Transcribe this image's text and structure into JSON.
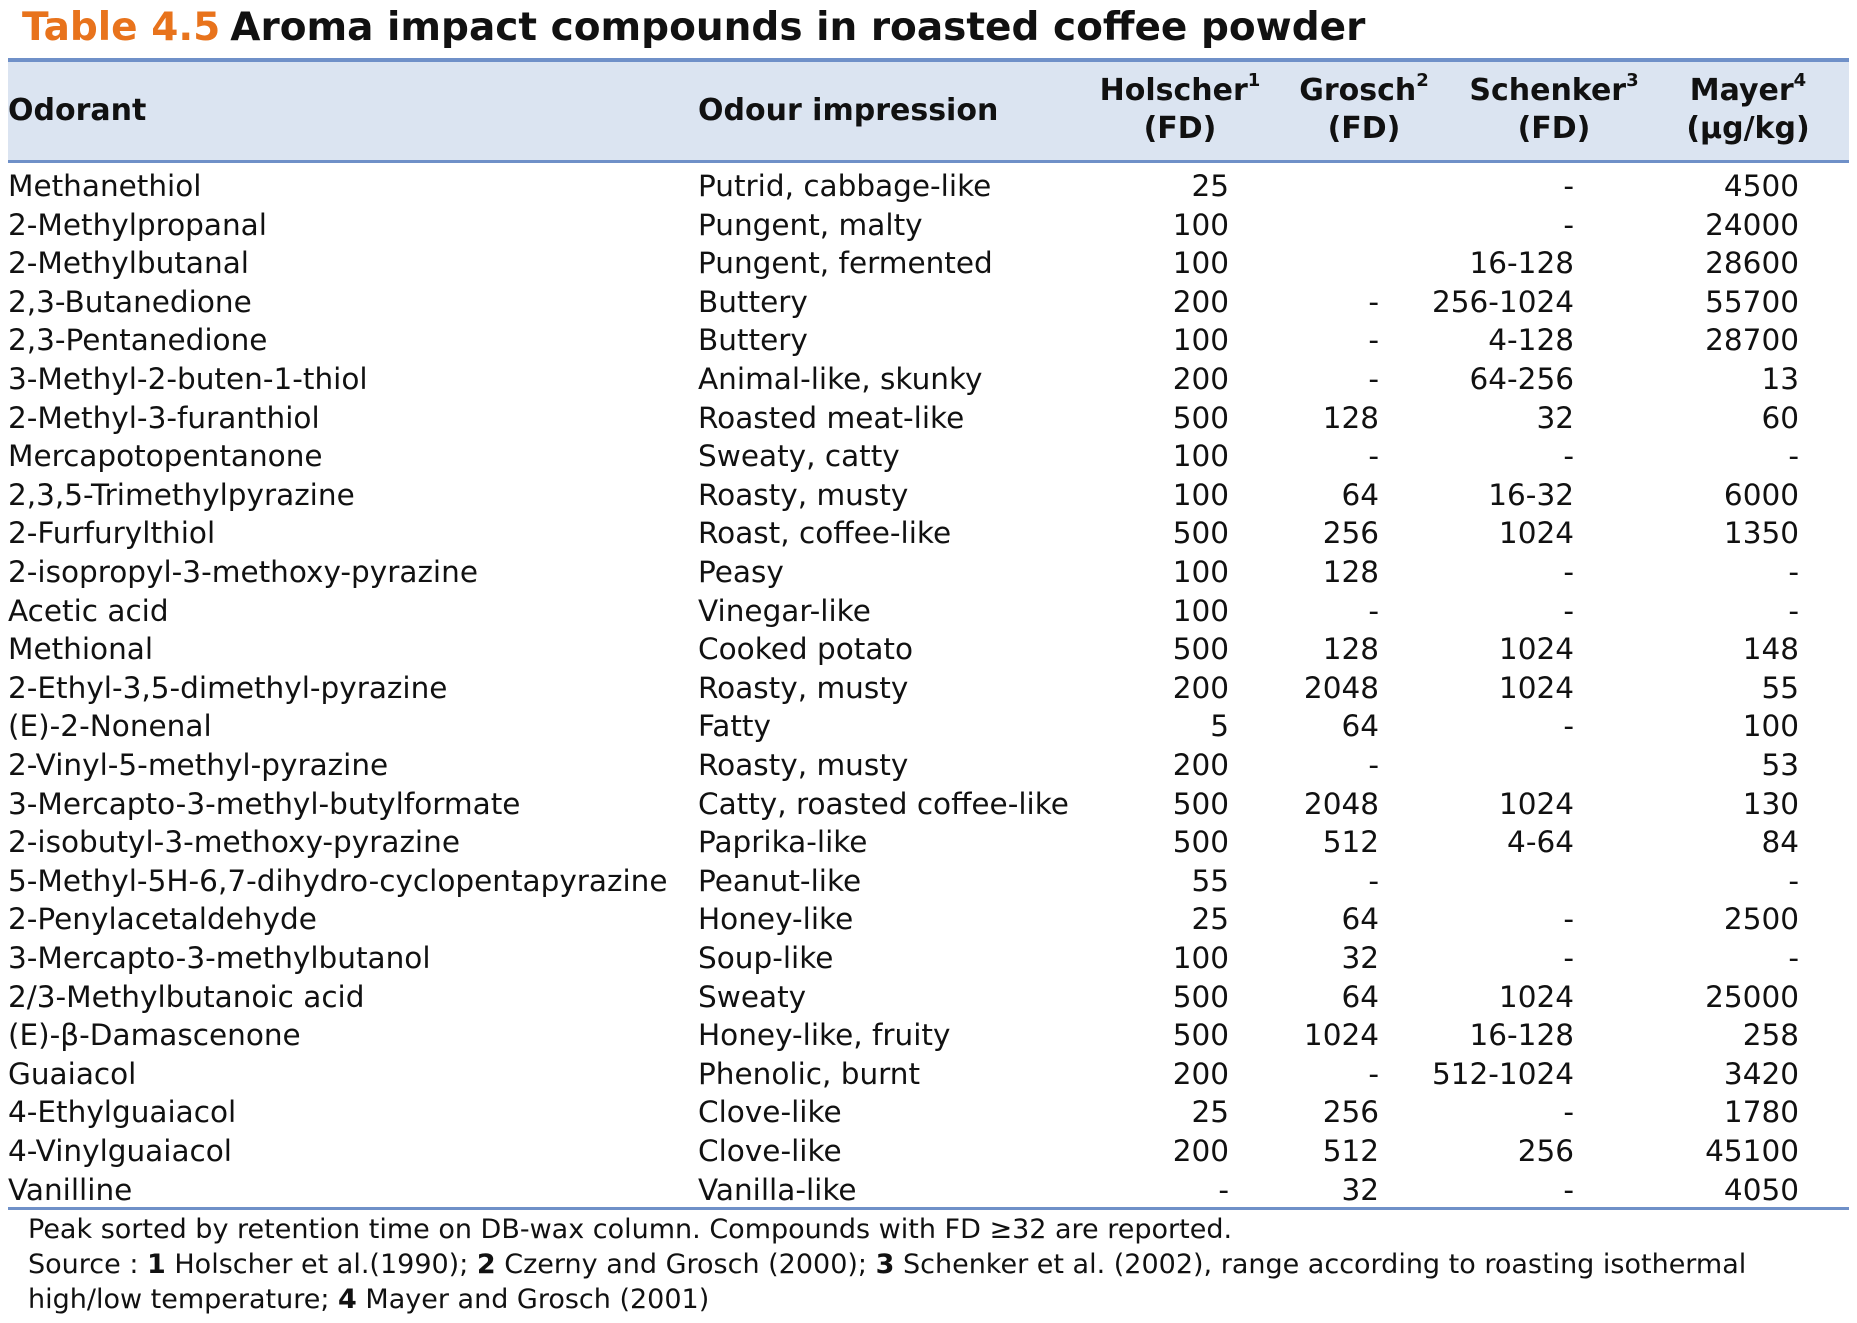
{
  "title": {
    "number": "Table 4.5",
    "text": "Aroma impact compounds in roasted coffee powder"
  },
  "header": {
    "odorant": "Odorant",
    "impression": "Odour impression",
    "holscher": {
      "name": "Holscher",
      "sup": "1",
      "unit": "(FD)"
    },
    "grosch": {
      "name": "Grosch",
      "sup": "2",
      "unit": "(FD)"
    },
    "schenker": {
      "name": "Schenker",
      "sup": "3",
      "unit": "(FD)"
    },
    "mayer": {
      "name": "Mayer",
      "sup": "4",
      "unit": "(µg/kg)"
    }
  },
  "rows": [
    [
      "Methanethiol",
      "Putrid, cabbage-like",
      "25",
      "",
      "-",
      "4500"
    ],
    [
      "2-Methylpropanal",
      "Pungent, malty",
      "100",
      "",
      "-",
      "24000"
    ],
    [
      "2-Methylbutanal",
      "Pungent, fermented",
      "100",
      "",
      "16-128",
      "28600"
    ],
    [
      "2,3-Butanedione",
      "Buttery",
      "200",
      "-",
      "256-1024",
      "55700"
    ],
    [
      "2,3-Pentanedione",
      "Buttery",
      "100",
      "-",
      "4-128",
      "28700"
    ],
    [
      "3-Methyl-2-buten-1-thiol",
      "Animal-like, skunky",
      "200",
      "-",
      "64-256",
      "13"
    ],
    [
      "2-Methyl-3-furanthiol",
      "Roasted meat-like",
      "500",
      "128",
      "32",
      "60"
    ],
    [
      "Mercapotopentanone",
      "Sweaty, catty",
      "100",
      "-",
      "-",
      "-"
    ],
    [
      "2,3,5-Trimethylpyrazine",
      "Roasty, musty",
      "100",
      "64",
      "16-32",
      "6000"
    ],
    [
      "2-Furfurylthiol",
      "Roast, coffee-like",
      "500",
      "256",
      "1024",
      "1350"
    ],
    [
      "2-isopropyl-3-methoxy-pyrazine",
      "Peasy",
      "100",
      "128",
      "-",
      "-"
    ],
    [
      "Acetic acid",
      "Vinegar-like",
      "100",
      "-",
      "-",
      "-"
    ],
    [
      "Methional",
      "Cooked potato",
      "500",
      "128",
      "1024",
      "148"
    ],
    [
      "2-Ethyl-3,5-dimethyl-pyrazine",
      "Roasty, musty",
      "200",
      "2048",
      "1024",
      "55"
    ],
    [
      "(E)-2-Nonenal",
      "Fatty",
      "5",
      "64",
      "-",
      "100"
    ],
    [
      "2-Vinyl-5-methyl-pyrazine",
      "Roasty, musty",
      "200",
      "-",
      "",
      "53"
    ],
    [
      "3-Mercapto-3-methyl-butylformate",
      "Catty, roasted coffee-like",
      "500",
      "2048",
      "1024",
      "130"
    ],
    [
      "2-isobutyl-3-methoxy-pyrazine",
      "Paprika-like",
      "500",
      "512",
      "4-64",
      "84"
    ],
    [
      "5-Methyl-5H-6,7-dihydro-cyclopentapyrazine",
      "Peanut-like",
      "55",
      "-",
      "",
      "-"
    ],
    [
      "2-Penylacetaldehyde",
      "Honey-like",
      "25",
      "64",
      "-",
      "2500"
    ],
    [
      "3-Mercapto-3-methylbutanol",
      "Soup-like",
      "100",
      "32",
      "-",
      "-"
    ],
    [
      "2/3-Methylbutanoic acid",
      "Sweaty",
      "500",
      "64",
      "1024",
      "25000"
    ],
    [
      "(E)-β-Damascenone",
      "Honey-like, fruity",
      "500",
      "1024",
      "16-128",
      "258"
    ],
    [
      "Guaiacol",
      "Phenolic, burnt",
      "200",
      "-",
      "512-1024",
      "3420"
    ],
    [
      "4-Ethylguaiacol",
      "Clove-like",
      "25",
      "256",
      "-",
      "1780"
    ],
    [
      "4-Vinylguaiacol",
      "Clove-like",
      "200",
      "512",
      "256",
      "45100"
    ],
    [
      "Vanilline",
      "Vanilla-like",
      "-",
      "32",
      "-",
      "4050"
    ]
  ],
  "footnote": {
    "line1": "Peak sorted by retention time on DB-wax column. Compounds with FD ≥32 are reported.",
    "source_prefix": "Source : ",
    "ref1_num": "1",
    "ref1_text": " Holscher et al.(1990); ",
    "ref2_num": "2",
    "ref2_text": " Czerny and Grosch (2000); ",
    "ref3_num": "3",
    "ref3_text": " Schenker et al. (2002), range according to roasting isothermal high/low temperature; ",
    "ref4_num": "4",
    "ref4_text": " Mayer and Grosch (2001)"
  }
}
